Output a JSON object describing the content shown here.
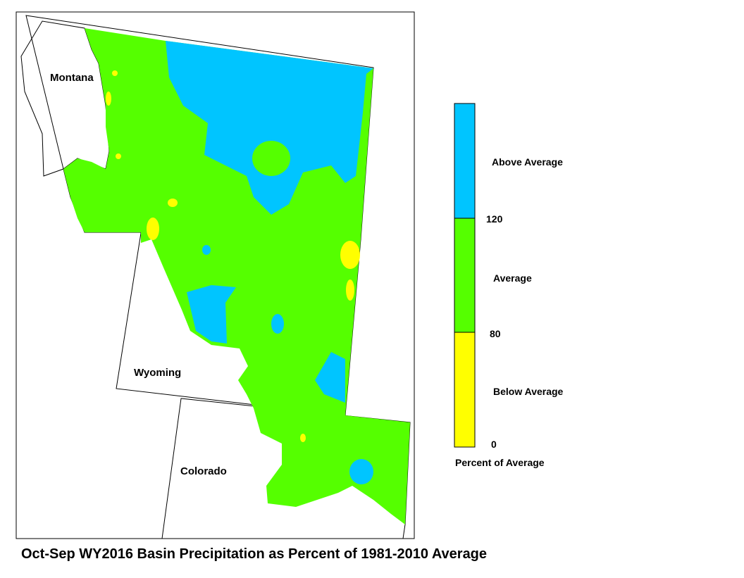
{
  "map": {
    "states": [
      "Montana",
      "Wyoming",
      "Colorado"
    ]
  },
  "legend": {
    "classes": [
      "Above Average",
      "Average",
      "Below Average"
    ],
    "breaks": [
      "120",
      "80",
      "0"
    ],
    "title": "Percent of Average"
  },
  "caption": "Oct-Sep WY2016 Basin Precipitation as Percent of 1981-2010 Average"
}
